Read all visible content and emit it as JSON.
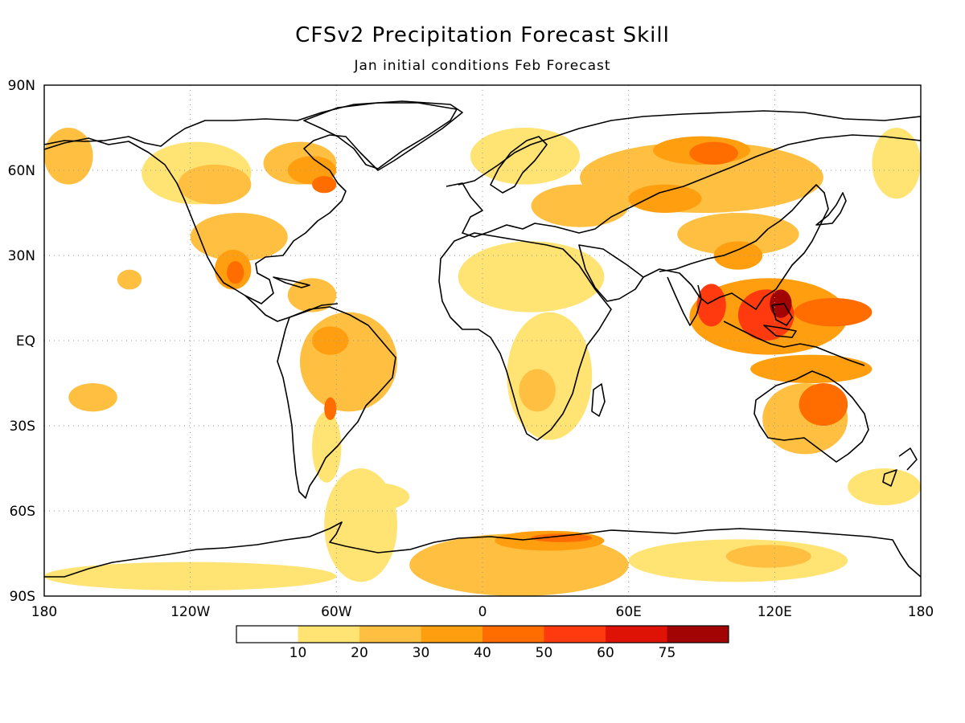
{
  "title": "CFSv2 Precipitation Forecast Skill",
  "subtitle": "Jan initial conditions  Feb Forecast",
  "chart_data": {
    "type": "heatmap",
    "title": "CFSv2 Precipitation Forecast Skill",
    "subtitle": "Jan initial conditions  Feb Forecast",
    "projection": "cylindrical equidistant (lon/lat)",
    "xlim": [
      -180,
      180
    ],
    "ylim": [
      -90,
      90
    ],
    "x_ticks": [
      {
        "value": -180,
        "label": "180"
      },
      {
        "value": -120,
        "label": "120W"
      },
      {
        "value": -60,
        "label": "60W"
      },
      {
        "value": 0,
        "label": "0"
      },
      {
        "value": 60,
        "label": "60E"
      },
      {
        "value": 120,
        "label": "120E"
      },
      {
        "value": 180,
        "label": "180"
      }
    ],
    "y_ticks": [
      {
        "value": 90,
        "label": "90N"
      },
      {
        "value": 60,
        "label": "60N"
      },
      {
        "value": 30,
        "label": "30N"
      },
      {
        "value": 0,
        "label": "EQ"
      },
      {
        "value": -30,
        "label": "30S"
      },
      {
        "value": -60,
        "label": "60S"
      },
      {
        "value": -90,
        "label": "90S"
      }
    ],
    "grid": true,
    "colorbar": {
      "placement": "bottom",
      "labels": [
        "10",
        "20",
        "30",
        "40",
        "50",
        "60",
        "75"
      ],
      "colors": [
        "#ffffff",
        "#ffe373",
        "#ffbf40",
        "#ff9f0f",
        "#ff6c00",
        "#ff3a0f",
        "#df1206",
        "#a20303"
      ]
    },
    "regions": [
      {
        "lon": [
          -65,
          -35
        ],
        "lat": [
          -45,
          -85
        ],
        "level": 1
      },
      {
        "lon": [
          -30,
          60
        ],
        "lat": [
          -68,
          -90
        ],
        "level": 2
      },
      {
        "lon": [
          60,
          150
        ],
        "lat": [
          -70,
          -85
        ],
        "level": 1
      },
      {
        "lon": [
          -180,
          -60
        ],
        "lat": [
          -78,
          -88
        ],
        "level": 1
      },
      {
        "lon": [
          5,
          50
        ],
        "lat": [
          -67,
          -74
        ],
        "level": 3
      },
      {
        "lon": [
          20,
          45
        ],
        "lat": [
          -68,
          -71
        ],
        "level": 4
      },
      {
        "lon": [
          100,
          135
        ],
        "lat": [
          -72,
          -80
        ],
        "level": 2
      },
      {
        "lon": [
          -140,
          -95
        ],
        "lat": [
          70,
          48
        ],
        "level": 1
      },
      {
        "lon": [
          -125,
          -95
        ],
        "lat": [
          62,
          48
        ],
        "level": 2
      },
      {
        "lon": [
          -90,
          -60
        ],
        "lat": [
          70,
          55
        ],
        "level": 2
      },
      {
        "lon": [
          -80,
          -60
        ],
        "lat": [
          65,
          55
        ],
        "level": 3
      },
      {
        "lon": [
          -70,
          -60
        ],
        "lat": [
          58,
          52
        ],
        "level": 4
      },
      {
        "lon": [
          -120,
          -80
        ],
        "lat": [
          45,
          28
        ],
        "level": 2
      },
      {
        "lon": [
          -110,
          -95
        ],
        "lat": [
          32,
          18
        ],
        "level": 3
      },
      {
        "lon": [
          -105,
          -98
        ],
        "lat": [
          28,
          20
        ],
        "level": 4
      },
      {
        "lon": [
          -80,
          -60
        ],
        "lat": [
          22,
          10
        ],
        "level": 2
      },
      {
        "lon": [
          -75,
          -35
        ],
        "lat": [
          10,
          -25
        ],
        "level": 2
      },
      {
        "lon": [
          -70,
          -55
        ],
        "lat": [
          5,
          -5
        ],
        "level": 3
      },
      {
        "lon": [
          -65,
          -60
        ],
        "lat": [
          -20,
          -28
        ],
        "level": 4
      },
      {
        "lon": [
          -70,
          -58
        ],
        "lat": [
          -25,
          -50
        ],
        "level": 1
      },
      {
        "lon": [
          -5,
          40
        ],
        "lat": [
          75,
          55
        ],
        "level": 1
      },
      {
        "lon": [
          20,
          60
        ],
        "lat": [
          55,
          40
        ],
        "level": 2
      },
      {
        "lon": [
          40,
          140
        ],
        "lat": [
          70,
          45
        ],
        "level": 2
      },
      {
        "lon": [
          70,
          110
        ],
        "lat": [
          72,
          62
        ],
        "level": 3
      },
      {
        "lon": [
          85,
          105
        ],
        "lat": [
          70,
          62
        ],
        "level": 4
      },
      {
        "lon": [
          60,
          90
        ],
        "lat": [
          55,
          45
        ],
        "level": 3
      },
      {
        "lon": [
          80,
          130
        ],
        "lat": [
          45,
          30
        ],
        "level": 2
      },
      {
        "lon": [
          95,
          115
        ],
        "lat": [
          35,
          25
        ],
        "level": 3
      },
      {
        "lon": [
          85,
          150
        ],
        "lat": [
          22,
          -5
        ],
        "level": 3
      },
      {
        "lon": [
          88,
          100
        ],
        "lat": [
          20,
          5
        ],
        "level": 5
      },
      {
        "lon": [
          105,
          128
        ],
        "lat": [
          18,
          0
        ],
        "level": 5
      },
      {
        "lon": [
          118,
          127
        ],
        "lat": [
          18,
          8
        ],
        "level": 7
      },
      {
        "lon": [
          128,
          160
        ],
        "lat": [
          15,
          5
        ],
        "level": 4
      },
      {
        "lon": [
          110,
          160
        ],
        "lat": [
          -5,
          -15
        ],
        "level": 3
      },
      {
        "lon": [
          115,
          150
        ],
        "lat": [
          -15,
          -40
        ],
        "level": 2
      },
      {
        "lon": [
          130,
          150
        ],
        "lat": [
          -15,
          -30
        ],
        "level": 4
      },
      {
        "lon": [
          -10,
          50
        ],
        "lat": [
          35,
          10
        ],
        "level": 1
      },
      {
        "lon": [
          10,
          45
        ],
        "lat": [
          10,
          -35
        ],
        "level": 1
      },
      {
        "lon": [
          15,
          30
        ],
        "lat": [
          -10,
          -25
        ],
        "level": 2
      },
      {
        "lon": [
          -150,
          -140
        ],
        "lat": [
          25,
          18
        ],
        "level": 2
      },
      {
        "lon": [
          -180,
          -160
        ],
        "lat": [
          75,
          55
        ],
        "level": 2
      },
      {
        "lon": [
          -170,
          -150
        ],
        "lat": [
          -15,
          -25
        ],
        "level": 2
      },
      {
        "lon": [
          -60,
          -30
        ],
        "lat": [
          -50,
          -60
        ],
        "level": 1
      },
      {
        "lon": [
          150,
          180
        ],
        "lat": [
          -45,
          -58
        ],
        "level": 1
      },
      {
        "lon": [
          160,
          180
        ],
        "lat": [
          75,
          50
        ],
        "level": 1
      }
    ]
  }
}
